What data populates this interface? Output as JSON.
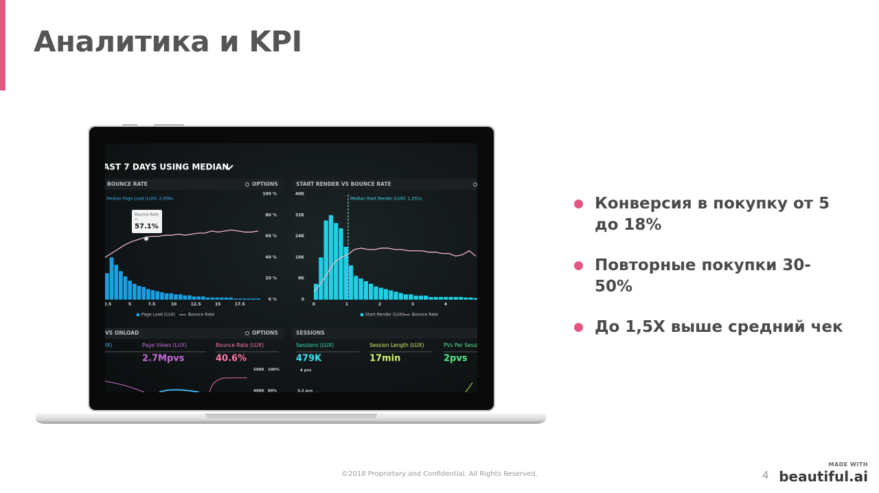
{
  "header": {
    "title": "Аналитика и KPI"
  },
  "bullets": [
    "Конверсия в покупку от  5 до 18%",
    "Повторные покупки 30-50%",
    "До 1,5X выше средний чек"
  ],
  "footer": {
    "copyright": "©2018 Proprietary and Confidential. All Rights Reserved.",
    "page_number": "4",
    "made_with": "MADE WITH",
    "brand": "beautiful",
    "brand_suffix": ".ai"
  },
  "screen": {
    "heading": "AST 7 DAYS USING MEDIAN",
    "left_chart": {
      "title": "BOUNCE RATE",
      "options": "OPTIONS",
      "median_label": "Median Page Load (LUX): 2.056s",
      "tooltip": {
        "title": "Bounce Rate",
        "sub": "7s",
        "value": "57.1%"
      },
      "ylim": [
        0,
        100
      ],
      "yticks": [
        {
          "value": 100,
          "label": "100 %"
        },
        {
          "value": 80,
          "label": "80 %"
        },
        {
          "value": 60,
          "label": "60 %"
        },
        {
          "value": 40,
          "label": "40 %"
        },
        {
          "value": 20,
          "label": "20 %"
        },
        {
          "value": 0,
          "label": "0 %"
        }
      ],
      "xlim": [
        2.2,
        19.9
      ],
      "xticks": [
        2.5,
        5,
        7.5,
        10,
        12.5,
        15,
        17.5
      ],
      "bars": [
        25,
        40,
        33,
        27,
        22,
        18,
        15,
        13,
        12,
        10,
        9,
        8,
        7,
        6,
        6,
        5,
        5,
        4,
        4,
        3,
        3,
        3,
        2,
        2,
        2,
        2,
        2,
        2,
        1,
        1,
        1,
        1,
        1,
        1
      ],
      "line": [
        40,
        44,
        48,
        52,
        55,
        57,
        59,
        60,
        60,
        61,
        61,
        62,
        61,
        62,
        63,
        63,
        65,
        64,
        65,
        66,
        65,
        64,
        64,
        65
      ],
      "legend": [
        "Page Load (LUX)",
        "Bounce Rate"
      ]
    },
    "right_chart": {
      "title": "START RENDER VS BOUNCE RATE",
      "median_label": "Median Start Render (LUX): 1.031s",
      "ylim": [
        0,
        40000
      ],
      "yticks": [
        {
          "value": 40000,
          "label": "40K"
        },
        {
          "value": 32000,
          "label": "32K"
        },
        {
          "value": 24000,
          "label": "24K"
        },
        {
          "value": 16000,
          "label": "16K"
        },
        {
          "value": 8000,
          "label": "8K"
        },
        0
      ],
      "xlim": [
        0,
        5
      ],
      "xticks": [
        0,
        1,
        2,
        3,
        4
      ],
      "bars": [
        6000,
        16000,
        30000,
        32000,
        29000,
        27000,
        20000,
        13000,
        9000,
        8000,
        7000,
        6000,
        5000,
        4500,
        4000,
        3500,
        3000,
        2500,
        2000,
        2000,
        1500,
        1500,
        1500,
        1000,
        1000,
        1000,
        1000,
        1000,
        1000,
        1000,
        800,
        800,
        600
      ],
      "line": [
        3000,
        6000,
        10000,
        14000,
        16000,
        17000,
        19000,
        19500,
        19000,
        19000,
        19500,
        19500,
        19000,
        19000,
        18500,
        18500,
        18500,
        18000,
        18000,
        17500,
        17500,
        16500,
        17000,
        18500,
        16500
      ],
      "legend": [
        "Start Render (LUX)",
        "Bounce Rate"
      ]
    },
    "bottom": {
      "left_title": "VS ONLOAD",
      "options": "OPTIONS",
      "right_title": "SESSIONS",
      "kpis": [
        {
          "label": "IX)",
          "value": ""
        },
        {
          "label": "Page Views (LUX)",
          "value": "2.7Mpvs"
        },
        {
          "label": "Bounce Rate (LUX)",
          "value": "40.6%"
        },
        {
          "label": "Sessions (LUX)",
          "value": "479K"
        },
        {
          "label": "Session Length (LUX)",
          "value": "17min"
        },
        {
          "label": "PVs Per Sessi",
          "value": "2pvs"
        }
      ],
      "axis_labels": [
        "500K",
        "100%",
        "400K",
        "80%",
        "4 pvs",
        "3.2 pvs"
      ]
    }
  }
}
